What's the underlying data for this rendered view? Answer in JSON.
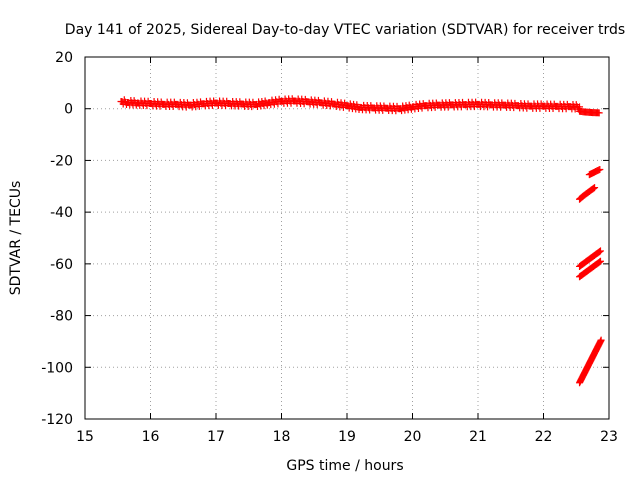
{
  "chart_data": {
    "type": "scatter",
    "title": "Day 141 of 2025, Sidereal Day-to-day VTEC variation (SDTVAR) for receiver trds",
    "xlabel": "GPS time / hours",
    "ylabel": "SDTVAR / TECUs",
    "xlim": [
      15,
      23
    ],
    "ylim": [
      -120,
      20
    ],
    "xticks": [
      "15",
      "16",
      "17",
      "18",
      "19",
      "20",
      "21",
      "22",
      "23"
    ],
    "yticks": [
      "20",
      "0",
      "-20",
      "-40",
      "-60",
      "-80",
      "-100",
      "-120"
    ],
    "grid": true,
    "marker": "plus",
    "color": "#ff0000",
    "series": [
      {
        "points": [
          [
            15.55,
            2.8
          ],
          [
            15.65,
            2.4
          ],
          [
            15.8,
            2.2
          ],
          [
            16.0,
            2.0
          ],
          [
            16.2,
            1.7
          ],
          [
            16.4,
            1.7
          ],
          [
            16.6,
            1.4
          ],
          [
            16.8,
            1.9
          ],
          [
            17.0,
            2.2
          ],
          [
            17.2,
            2.0
          ],
          [
            17.4,
            1.8
          ],
          [
            17.6,
            1.6
          ],
          [
            17.8,
            2.3
          ],
          [
            18.0,
            2.9
          ],
          [
            18.2,
            3.0
          ],
          [
            18.4,
            2.7
          ],
          [
            18.6,
            2.3
          ],
          [
            18.8,
            1.8
          ],
          [
            19.0,
            1.2
          ],
          [
            19.2,
            0.5
          ],
          [
            19.4,
            0.3
          ],
          [
            19.6,
            0.2
          ],
          [
            19.8,
            0.0
          ],
          [
            20.0,
            0.7
          ],
          [
            20.2,
            1.2
          ],
          [
            20.4,
            1.4
          ],
          [
            20.6,
            1.5
          ],
          [
            20.8,
            1.6
          ],
          [
            21.0,
            1.7
          ],
          [
            21.2,
            1.5
          ],
          [
            21.4,
            1.4
          ],
          [
            21.6,
            1.2
          ],
          [
            21.8,
            1.0
          ],
          [
            22.0,
            1.0
          ],
          [
            22.2,
            0.9
          ],
          [
            22.4,
            0.8
          ],
          [
            22.55,
            0.7
          ]
        ]
      },
      {
        "points": [
          [
            22.55,
            -1.0
          ],
          [
            22.65,
            -1.3
          ],
          [
            22.75,
            -1.5
          ],
          [
            22.85,
            -1.6
          ]
        ]
      },
      {
        "points": [
          [
            22.7,
            -25.5
          ],
          [
            22.78,
            -24.5
          ],
          [
            22.86,
            -23.5
          ]
        ]
      },
      {
        "points": [
          [
            22.55,
            -35.0
          ],
          [
            22.62,
            -33.5
          ],
          [
            22.7,
            -32.0
          ],
          [
            22.78,
            -30.5
          ]
        ]
      },
      {
        "points": [
          [
            22.55,
            -61.0
          ],
          [
            22.63,
            -59.5
          ],
          [
            22.71,
            -58.0
          ],
          [
            22.79,
            -56.5
          ],
          [
            22.87,
            -55.0
          ]
        ]
      },
      {
        "points": [
          [
            22.55,
            -65.0
          ],
          [
            22.63,
            -63.5
          ],
          [
            22.71,
            -62.0
          ],
          [
            22.79,
            -60.5
          ],
          [
            22.87,
            -59.0
          ]
        ]
      },
      {
        "points": [
          [
            22.55,
            -106.0
          ],
          [
            22.6,
            -103.5
          ],
          [
            22.65,
            -101.0
          ],
          [
            22.7,
            -98.5
          ],
          [
            22.75,
            -96.0
          ],
          [
            22.8,
            -93.5
          ],
          [
            22.85,
            -91.0
          ],
          [
            22.88,
            -89.5
          ]
        ]
      }
    ]
  }
}
